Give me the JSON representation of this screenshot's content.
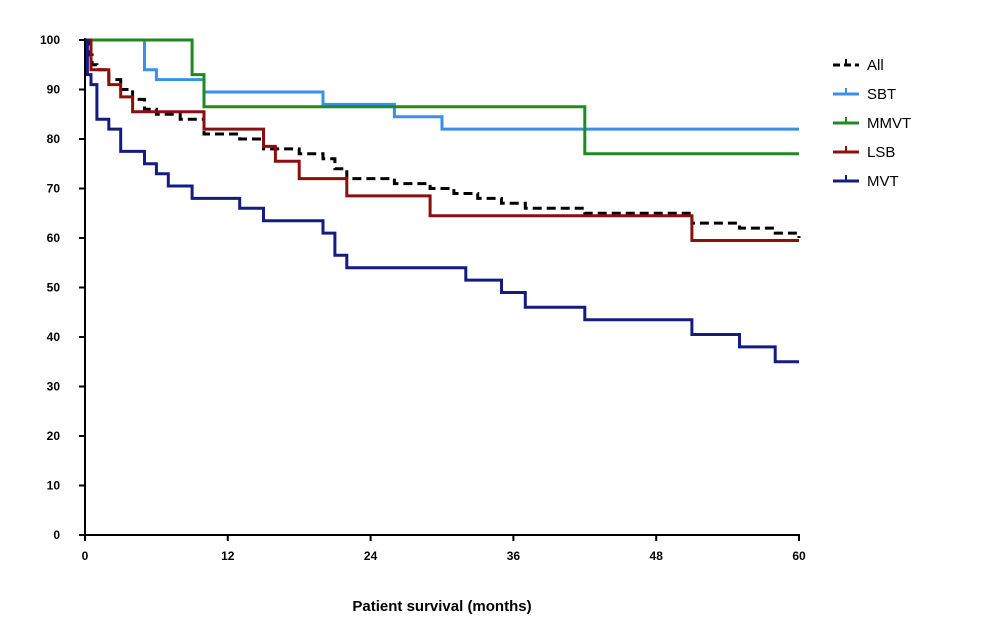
{
  "chart_data": {
    "type": "line",
    "step": true,
    "title": "",
    "xlabel": "Patient survival (months)",
    "ylabel": "",
    "xlim": [
      0,
      60
    ],
    "ylim": [
      0,
      100
    ],
    "xticks": [
      0,
      12,
      24,
      36,
      48,
      60
    ],
    "yticks": [
      0,
      10,
      20,
      30,
      40,
      50,
      60,
      70,
      80,
      90,
      100
    ],
    "grid": false,
    "legend_position": "top-right",
    "series": [
      {
        "name": "All",
        "color": "#000000",
        "dashed": true,
        "points": [
          [
            0,
            100
          ],
          [
            0.3,
            97
          ],
          [
            0.6,
            95
          ],
          [
            1,
            94
          ],
          [
            2,
            92
          ],
          [
            3,
            90
          ],
          [
            4,
            88
          ],
          [
            5,
            86
          ],
          [
            6,
            85
          ],
          [
            8,
            84
          ],
          [
            10,
            81
          ],
          [
            13,
            80
          ],
          [
            15,
            78
          ],
          [
            18,
            77
          ],
          [
            20,
            76
          ],
          [
            21,
            74
          ],
          [
            22,
            72
          ],
          [
            26,
            71
          ],
          [
            29,
            70
          ],
          [
            31,
            69
          ],
          [
            33,
            68
          ],
          [
            35,
            67
          ],
          [
            37,
            66
          ],
          [
            42,
            65
          ],
          [
            51,
            63
          ],
          [
            55,
            62
          ],
          [
            58,
            61
          ],
          [
            60,
            60
          ]
        ]
      },
      {
        "name": "SBT",
        "color": "#3a8fe8",
        "dashed": false,
        "points": [
          [
            0,
            100
          ],
          [
            5,
            94
          ],
          [
            6,
            92
          ],
          [
            10,
            89.5
          ],
          [
            20,
            87
          ],
          [
            26,
            84.5
          ],
          [
            30,
            82
          ],
          [
            60,
            82
          ]
        ]
      },
      {
        "name": "MMVT",
        "color": "#1f8a1f",
        "dashed": false,
        "points": [
          [
            0,
            100
          ],
          [
            9,
            93
          ],
          [
            10,
            86.5
          ],
          [
            42,
            77
          ],
          [
            60,
            77
          ]
        ]
      },
      {
        "name": "LSB",
        "color": "#8b0f0f",
        "dashed": false,
        "points": [
          [
            0,
            100
          ],
          [
            0.5,
            94
          ],
          [
            2,
            91
          ],
          [
            3,
            88.5
          ],
          [
            4,
            85.5
          ],
          [
            10,
            82
          ],
          [
            15,
            78.5
          ],
          [
            16,
            75.5
          ],
          [
            18,
            72
          ],
          [
            22,
            68.5
          ],
          [
            29,
            64.5
          ],
          [
            51,
            59.5
          ],
          [
            60,
            59.5
          ]
        ]
      },
      {
        "name": "MVT",
        "color": "#141c80",
        "dashed": false,
        "points": [
          [
            0,
            100
          ],
          [
            0.2,
            93
          ],
          [
            0.5,
            91
          ],
          [
            1,
            84
          ],
          [
            2,
            82
          ],
          [
            3,
            77.5
          ],
          [
            5,
            75
          ],
          [
            6,
            73
          ],
          [
            7,
            70.5
          ],
          [
            9,
            68
          ],
          [
            13,
            66
          ],
          [
            15,
            63.5
          ],
          [
            20,
            61
          ],
          [
            21,
            56.5
          ],
          [
            22,
            54
          ],
          [
            32,
            51.5
          ],
          [
            35,
            49
          ],
          [
            37,
            46
          ],
          [
            42,
            43.5
          ],
          [
            51,
            40.5
          ],
          [
            55,
            38
          ],
          [
            58,
            35
          ],
          [
            60,
            35
          ]
        ]
      }
    ]
  }
}
